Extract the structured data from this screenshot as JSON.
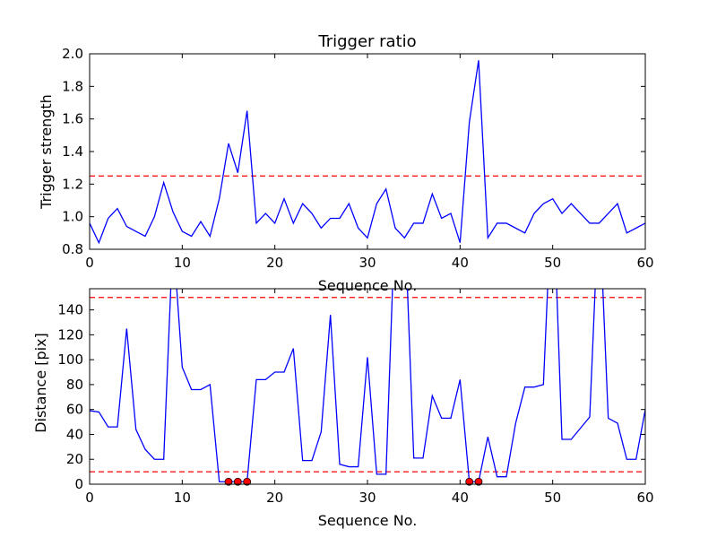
{
  "chart_data": [
    {
      "type": "line",
      "title": "Trigger ratio",
      "xlabel": "Sequence No.",
      "ylabel": "Trigger strength",
      "xlim": [
        0,
        60
      ],
      "ylim": [
        0.8,
        2.0
      ],
      "xticks": [
        "0",
        "10",
        "20",
        "30",
        "40",
        "50",
        "60"
      ],
      "yticks": [
        "0.8",
        "1.0",
        "1.2",
        "1.4",
        "1.6",
        "1.8",
        "2.0"
      ],
      "xtick_values": [
        0,
        10,
        20,
        30,
        40,
        50,
        60
      ],
      "ytick_values": [
        0.8,
        1.0,
        1.2,
        1.4,
        1.6,
        1.8,
        2.0
      ],
      "x": [
        0,
        1,
        2,
        3,
        4,
        5,
        6,
        7,
        8,
        9,
        10,
        11,
        12,
        13,
        14,
        15,
        16,
        17,
        18,
        19,
        20,
        21,
        22,
        23,
        24,
        25,
        26,
        27,
        28,
        29,
        30,
        31,
        32,
        33,
        34,
        35,
        36,
        37,
        38,
        39,
        40,
        41,
        42,
        43,
        44,
        45,
        46,
        47,
        48,
        49,
        50,
        51,
        52,
        53,
        54,
        55,
        56,
        57,
        58,
        59,
        60
      ],
      "series": [
        {
          "color": "#0000ff",
          "values": [
            0.96,
            0.84,
            0.99,
            1.05,
            0.94,
            0.91,
            0.88,
            1.0,
            1.21,
            1.03,
            0.91,
            0.88,
            0.97,
            0.88,
            1.11,
            1.45,
            1.27,
            1.65,
            0.96,
            1.02,
            0.96,
            1.11,
            0.96,
            1.08,
            1.02,
            0.93,
            0.99,
            0.99,
            1.08,
            0.93,
            0.87,
            1.08,
            1.17,
            0.93,
            0.87,
            0.96,
            0.96,
            1.14,
            0.99,
            1.02,
            0.84,
            1.58,
            1.96,
            0.87,
            0.96,
            0.96,
            0.93,
            0.9,
            1.02,
            1.08,
            1.11,
            1.02,
            1.08,
            1.02,
            0.96,
            0.96,
            1.02,
            1.08,
            0.9,
            0.93,
            0.96
          ]
        }
      ],
      "thresholds": [
        1.25
      ],
      "threshold_color": "#ff0000",
      "grid": false
    },
    {
      "type": "line",
      "title": "",
      "xlabel": "Sequence No.",
      "ylabel": "Distance [pix]",
      "xlim": [
        0,
        60
      ],
      "ylim": [
        0,
        157
      ],
      "xticks": [
        "0",
        "10",
        "20",
        "30",
        "40",
        "50",
        "60"
      ],
      "yticks": [
        "0",
        "20",
        "40",
        "60",
        "80",
        "100",
        "120",
        "140"
      ],
      "xtick_values": [
        0,
        10,
        20,
        30,
        40,
        50,
        60
      ],
      "ytick_values": [
        0,
        20,
        40,
        60,
        80,
        100,
        120,
        140
      ],
      "x": [
        0,
        1,
        2,
        3,
        4,
        5,
        6,
        7,
        8,
        9,
        10,
        11,
        12,
        13,
        14,
        15,
        16,
        17,
        18,
        19,
        20,
        21,
        22,
        23,
        24,
        25,
        26,
        27,
        28,
        29,
        30,
        31,
        32,
        33,
        34,
        35,
        36,
        37,
        38,
        39,
        40,
        41,
        42,
        43,
        44,
        45,
        46,
        47,
        48,
        49,
        50,
        51,
        52,
        53,
        54,
        55,
        56,
        57,
        58,
        59,
        60
      ],
      "series": [
        {
          "color": "#0000ff",
          "values": [
            59,
            58,
            46,
            46,
            125,
            44,
            28,
            20,
            20,
            200,
            94,
            76,
            76,
            80,
            2,
            2,
            2,
            2,
            84,
            84,
            90,
            90,
            109,
            19,
            19,
            42,
            136,
            16,
            14,
            14,
            102,
            8,
            8,
            220,
            220,
            21,
            21,
            71,
            53,
            53,
            84,
            2,
            2,
            38,
            6,
            6,
            49,
            78,
            78,
            80,
            250,
            36,
            36,
            45,
            54,
            230,
            53,
            49,
            20,
            20,
            60
          ]
        }
      ],
      "markers": {
        "color": "#ff0000",
        "x": [
          15,
          16,
          17,
          41,
          42
        ],
        "y": [
          2,
          2,
          2,
          2,
          2
        ]
      },
      "thresholds": [
        150,
        10
      ],
      "threshold_color": "#ff0000",
      "grid": false
    }
  ]
}
